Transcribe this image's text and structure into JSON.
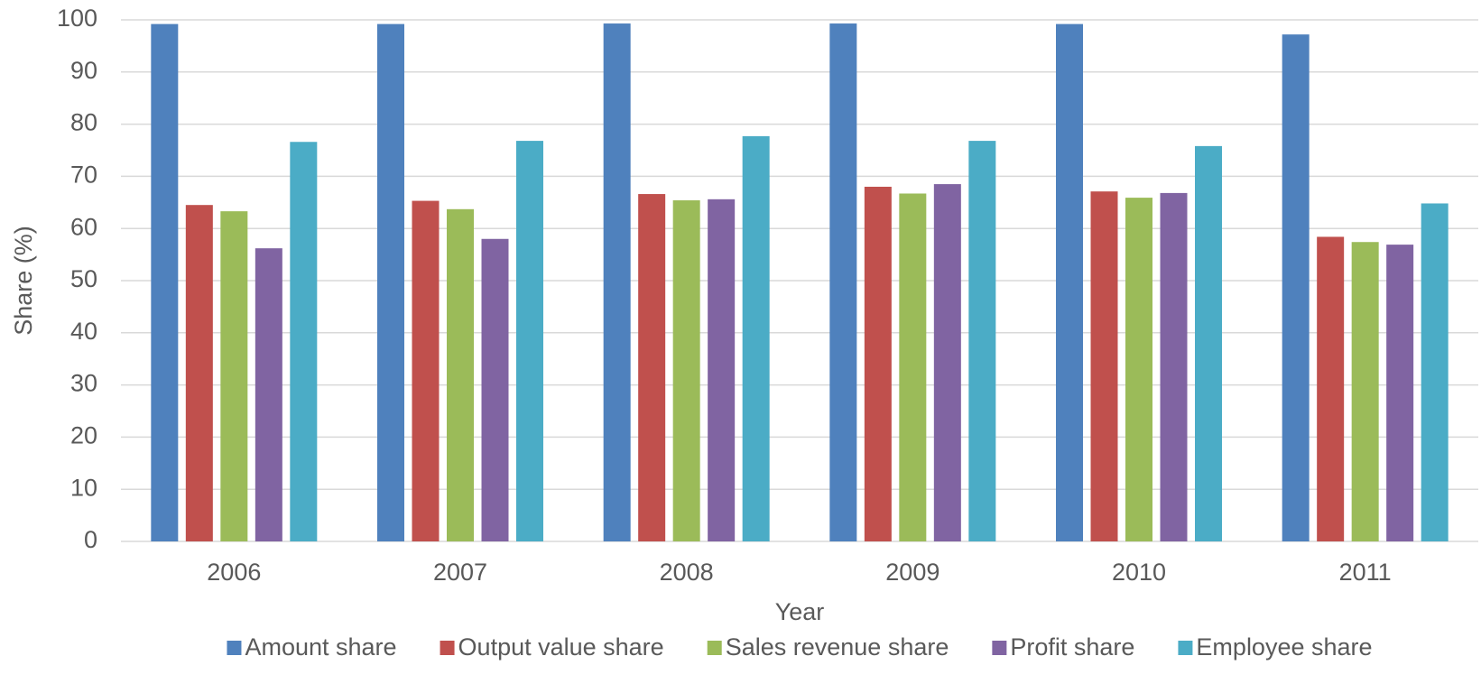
{
  "chart_data": {
    "type": "bar",
    "x_label": "Year",
    "y_label": "Share (%)",
    "categories": [
      "2006",
      "2007",
      "2008",
      "2009",
      "2010",
      "2011"
    ],
    "series": [
      {
        "name": "Amount share",
        "color": "#4f81bd",
        "values": [
          99.2,
          99.2,
          99.3,
          99.3,
          99.2,
          97.2
        ]
      },
      {
        "name": "Output value share",
        "color": "#c0504d",
        "values": [
          64.5,
          65.3,
          66.6,
          68.0,
          67.1,
          58.4
        ]
      },
      {
        "name": "Sales revenue share",
        "color": "#9bbb59",
        "values": [
          63.3,
          63.7,
          65.4,
          66.7,
          65.9,
          57.4
        ]
      },
      {
        "name": "Profit share",
        "color": "#8064a2",
        "values": [
          56.2,
          58.0,
          65.6,
          68.5,
          66.8,
          56.9
        ]
      },
      {
        "name": "Employee share",
        "color": "#4bacc6",
        "values": [
          76.6,
          76.8,
          77.7,
          76.8,
          75.8,
          64.8
        ]
      }
    ],
    "ylim": [
      0,
      100
    ],
    "yticks": [
      0,
      10,
      20,
      30,
      40,
      50,
      60,
      70,
      80,
      90,
      100
    ],
    "grid": true,
    "legend": "bottom"
  }
}
